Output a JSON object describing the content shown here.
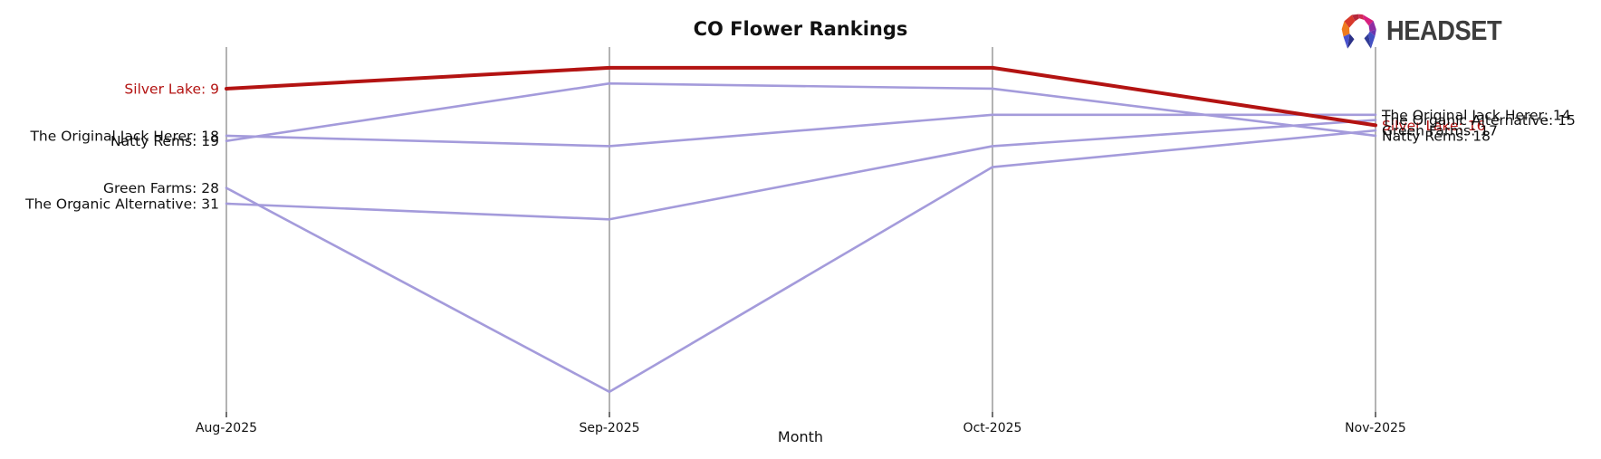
{
  "header": {
    "logo_text": "HEADSET"
  },
  "chart_data": {
    "type": "line",
    "subtype": "bump-ranking-chart",
    "title": "CO Flower Rankings",
    "xlabel": "Month",
    "x_categories": [
      "Aug-2025",
      "Sep-2025",
      "Oct-2025",
      "Nov-2025"
    ],
    "y_meaning": "rank (lower number = higher position, axis inverted)",
    "y_inverted": true,
    "ylim": [
      4,
      68
    ],
    "legend_position": "none (labels at line ends)",
    "grid": "vertical month axis lines only",
    "axis_color": "#b3b3b3",
    "tick_color": "#333333",
    "label_color": "#111111",
    "series": [
      {
        "name": "The Original Jack Herer",
        "color": "#a49bdb",
        "line_width": 2.6,
        "highlight": false,
        "values": [
          18,
          20,
          14,
          14
        ],
        "left_label": "The Original Jack Herer: 18",
        "right_label": "The Original Jack Herer: 14"
      },
      {
        "name": "Natty Rems",
        "color": "#a49bdb",
        "line_width": 2.6,
        "highlight": false,
        "values": [
          19,
          8,
          9,
          18
        ],
        "left_label": "Natty Rems: 19",
        "right_label": "Natty Rems: 18"
      },
      {
        "name": "Green Farms",
        "color": "#a49bdb",
        "line_width": 2.6,
        "highlight": false,
        "values": [
          28,
          67,
          24,
          17
        ],
        "left_label": "Green Farms: 28",
        "right_label": "Green Farms: 17"
      },
      {
        "name": "The Organic Alternative",
        "color": "#a49bdb",
        "line_width": 2.6,
        "highlight": false,
        "values": [
          31,
          34,
          20,
          15
        ],
        "left_label": "The Organic Alternative: 31",
        "right_label": "The Organic Alternative: 15"
      },
      {
        "name": "Silver Lake",
        "color": "#b31312",
        "line_width": 4,
        "highlight": true,
        "values": [
          9,
          5,
          5,
          16
        ],
        "left_label": "Silver Lake: 9",
        "right_label": "Silver Lake: 16"
      }
    ]
  }
}
